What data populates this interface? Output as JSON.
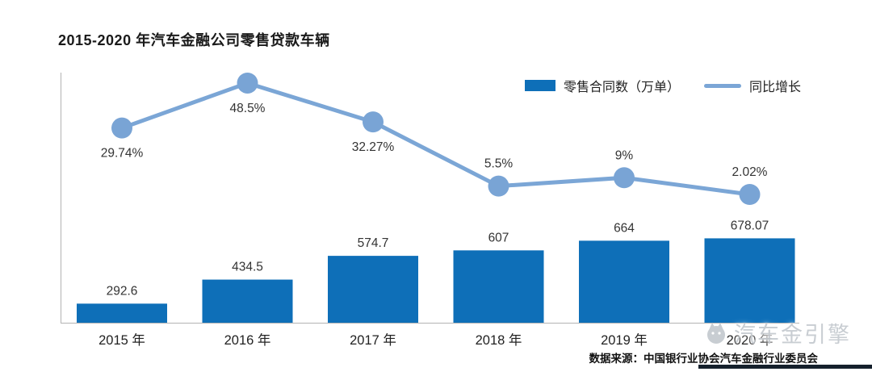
{
  "page": {
    "title": "2015-2020 年汽车金融公司零售贷款车辆",
    "source": "数据来源：中国银行业协会汽车金融行业委员会",
    "watermark": "汽车金引擎"
  },
  "legend": {
    "bar_label": "零售合同数（万单）",
    "line_label": "同比增长"
  },
  "colors": {
    "bar": "#0e6fb8",
    "line": "#7ba6d6",
    "marker": "#79a4d5",
    "axis": "#b3b3b3",
    "value_text": "#333333",
    "tick_text": "#222222",
    "footer_bar": "#15202c",
    "watermark": "#c6cbd0"
  },
  "chart_data": {
    "type": "bar+line",
    "title": "2015-2020 年汽车金融公司零售贷款车辆",
    "categories": [
      "2015 年",
      "2016 年",
      "2017 年",
      "2018 年",
      "2019 年",
      "2020 年"
    ],
    "series": [
      {
        "name": "零售合同数（万单）",
        "type": "bar",
        "values": [
          292.6,
          434.5,
          574.7,
          607,
          664,
          678.07
        ],
        "value_labels": [
          "292.6",
          "434.5",
          "574.7",
          "607",
          "664",
          "678.07"
        ]
      },
      {
        "name": "同比增长",
        "type": "line",
        "values": [
          29.74,
          48.5,
          32.27,
          5.5,
          9,
          2.02
        ],
        "value_labels": [
          "29.74%",
          "48.5%",
          "32.27%",
          "5.5%",
          "9%",
          "2.02%"
        ],
        "label_positions": [
          "below",
          "below",
          "below",
          "above",
          "above",
          "above"
        ]
      }
    ],
    "legend_position": "top-right",
    "grid": false,
    "source": "数据来源：中国银行业协会汽车金融行业委员会"
  }
}
